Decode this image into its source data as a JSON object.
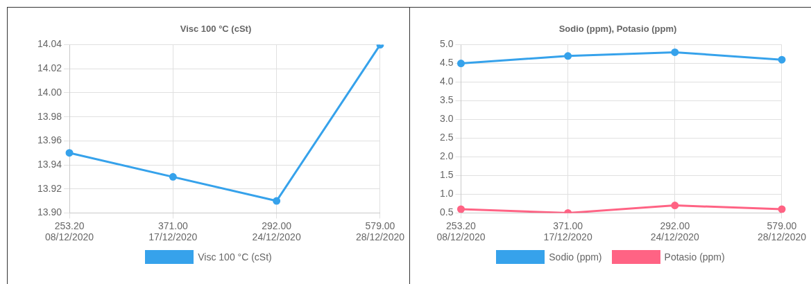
{
  "chart_data": [
    {
      "type": "line",
      "title": "Visc 100 °C (cSt)",
      "categories": [
        "253.20\n08/12/2020",
        "371.00\n17/12/2020",
        "292.00\n24/12/2020",
        "579.00\n28/12/2020"
      ],
      "series": [
        {
          "name": "Visc 100 °C (cSt)",
          "color": "#36a2eb",
          "values": [
            13.95,
            13.93,
            13.91,
            14.04
          ]
        }
      ],
      "ylim": [
        13.9,
        14.04
      ],
      "yticks": [
        {
          "value": 13.9,
          "label": "13.90"
        },
        {
          "value": 13.92,
          "label": "13.92"
        },
        {
          "value": 13.94,
          "label": "13.94"
        },
        {
          "value": 13.96,
          "label": "13.96"
        },
        {
          "value": 13.98,
          "label": "13.98"
        },
        {
          "value": 14.0,
          "label": "14.00"
        },
        {
          "value": 14.02,
          "label": "14.02"
        },
        {
          "value": 14.04,
          "label": "14.04"
        }
      ],
      "grid": true,
      "legend": "bottom",
      "marker": "circle",
      "line_style": "solid"
    },
    {
      "type": "line",
      "title": "Sodio (ppm), Potasio (ppm)",
      "categories": [
        "253.20\n08/12/2020",
        "371.00\n17/12/2020",
        "292.00\n24/12/2020",
        "579.00\n28/12/2020"
      ],
      "series": [
        {
          "name": "Sodio (ppm)",
          "color": "#36a2eb",
          "values": [
            4.5,
            4.7,
            4.8,
            4.6
          ]
        },
        {
          "name": "Potasio (ppm)",
          "color": "#ff6384",
          "values": [
            0.6,
            0.5,
            0.7,
            0.6
          ]
        }
      ],
      "ylim": [
        0.5,
        5.0
      ],
      "yticks": [
        {
          "value": 0.5,
          "label": "0.5"
        },
        {
          "value": 1,
          "label": "1.0"
        },
        {
          "value": 1.5,
          "label": "1.5"
        },
        {
          "value": 2,
          "label": "2.0"
        },
        {
          "value": 2.5,
          "label": "2.5"
        },
        {
          "value": 3,
          "label": "3.0"
        },
        {
          "value": 3.5,
          "label": "3.5"
        },
        {
          "value": 4,
          "label": "4.0"
        },
        {
          "value": 4.5,
          "label": "4.5"
        },
        {
          "value": 5,
          "label": "5.0"
        }
      ],
      "grid": true,
      "legend": "bottom",
      "marker": "circle",
      "line_style": "solid"
    }
  ]
}
